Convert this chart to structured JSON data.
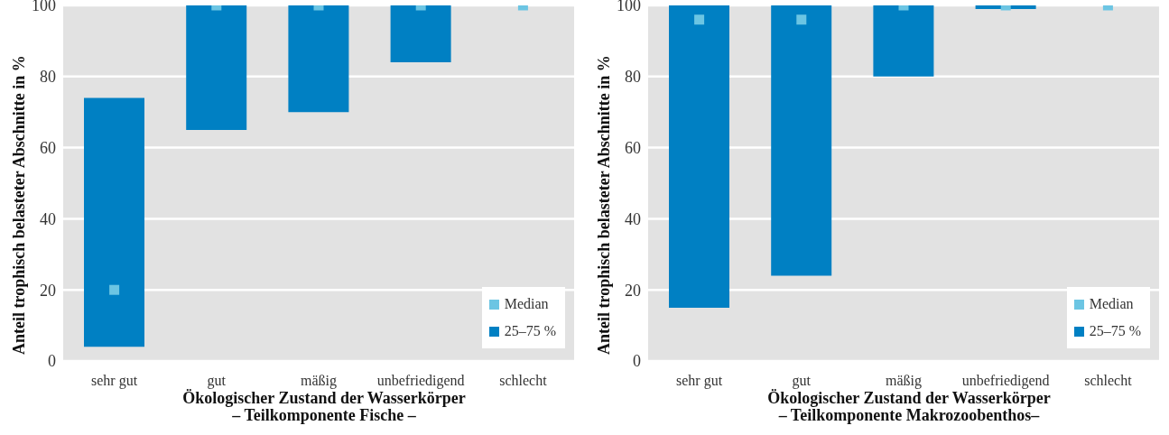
{
  "chart_data": [
    {
      "type": "bar",
      "xlabel": "Ökologischer Zustand der Wasserkörper\n– Teilkomponente Fische –",
      "ylabel": "Anteil trophisch belasteter Abschnitte in %",
      "categories": [
        "sehr gut",
        "gut",
        "mäßig",
        "unbefriedigend",
        "schlecht"
      ],
      "series": [
        {
          "name": "Median",
          "type": "scatter",
          "marker": "square",
          "color": "#6cc5e3",
          "x": [
            "sehr gut",
            "gut",
            "mäßig",
            "unbefriedigend",
            "schlecht"
          ],
          "values": [
            20,
            100,
            100,
            100,
            100
          ]
        },
        {
          "name": "25–75 %",
          "type": "bar",
          "color": "#0080c3",
          "base": [
            4,
            65,
            70,
            84,
            null
          ],
          "values": [
            70,
            35,
            30,
            16,
            null
          ]
        }
      ],
      "ylim": [
        0,
        100
      ],
      "yticks": [
        0,
        20,
        40,
        60,
        80,
        100
      ],
      "grid": "y",
      "legend": "bottom right"
    },
    {
      "type": "bar",
      "xlabel": "Ökologischer Zustand der Wasserkörper\n– Teilkomponente Makrozoobenthos–",
      "ylabel": "Anteil trophisch belasteter Abschnitte in %",
      "categories": [
        "sehr gut",
        "gut",
        "mäßig",
        "unbefriedigend",
        "schlecht"
      ],
      "series": [
        {
          "name": "Median",
          "type": "scatter",
          "marker": "square",
          "color": "#6cc5e3",
          "x": [
            "sehr gut",
            "gut",
            "mäßig",
            "unbefriedigend",
            "schlecht"
          ],
          "values": [
            96,
            96,
            100,
            100,
            100
          ]
        },
        {
          "name": "25–75 %",
          "type": "bar",
          "color": "#0080c3",
          "base": [
            15,
            24,
            80,
            99,
            null
          ],
          "values": [
            85,
            76,
            20,
            1,
            null
          ]
        }
      ],
      "ylim": [
        0,
        100
      ],
      "yticks": [
        0,
        20,
        40,
        60,
        80,
        100
      ],
      "grid": "y",
      "legend": "bottom right"
    }
  ]
}
